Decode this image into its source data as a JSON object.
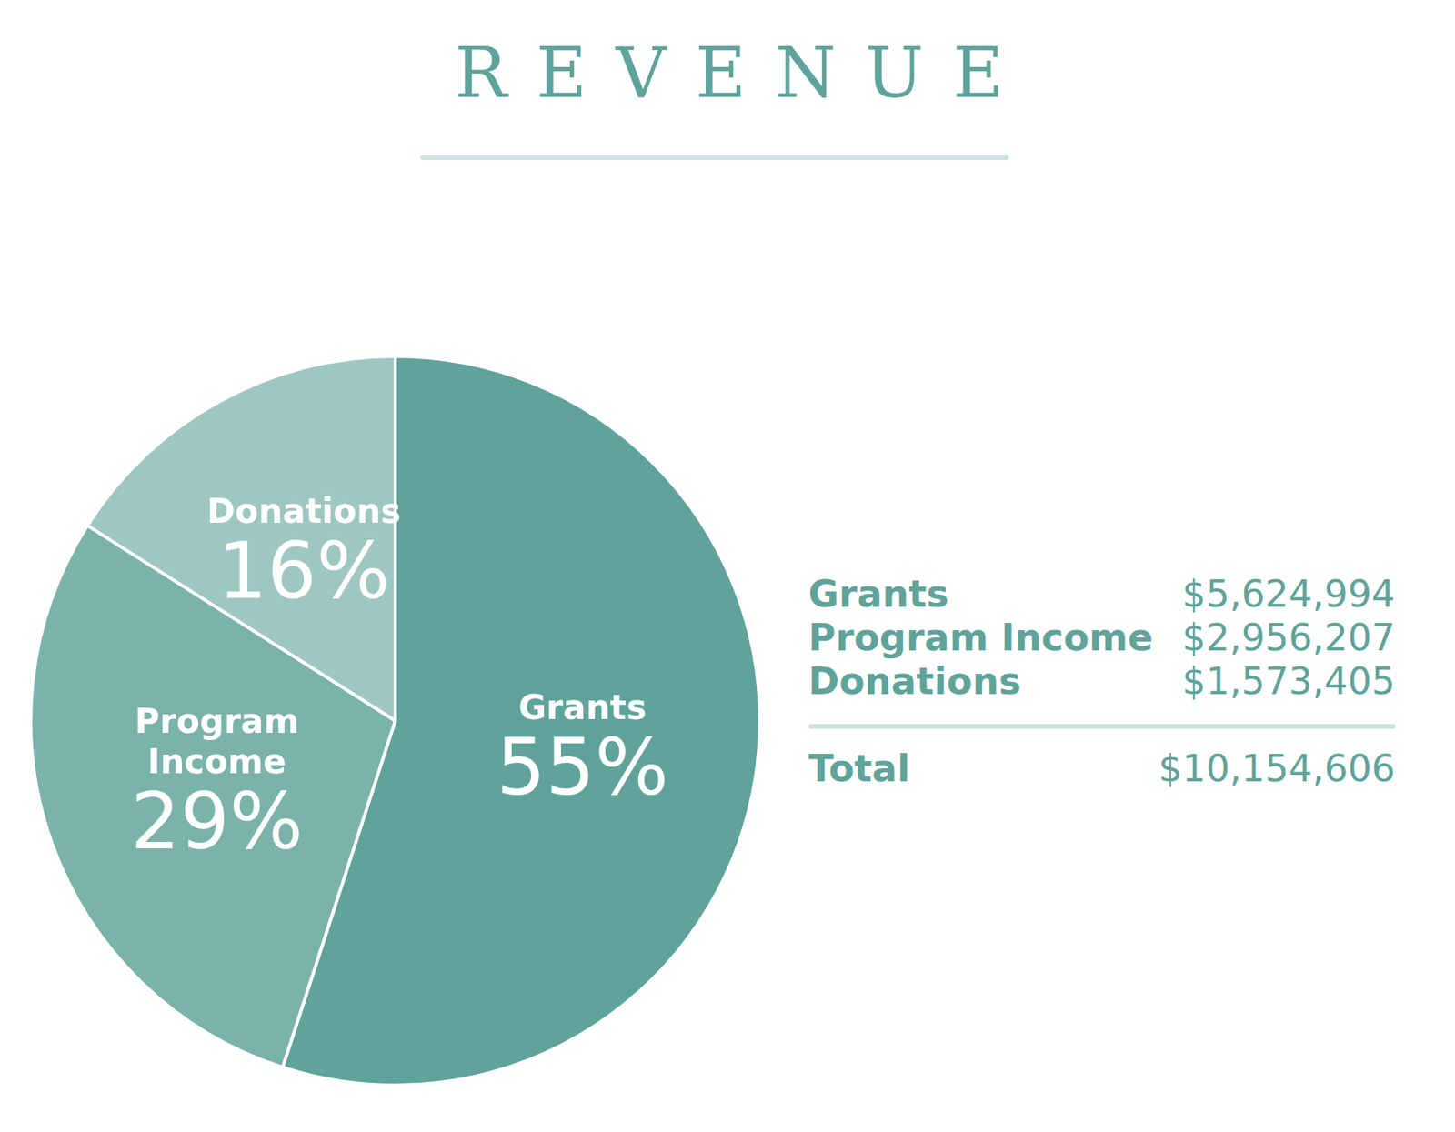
{
  "chart_data": {
    "type": "pie",
    "title": "REVENUE",
    "categories": [
      "Grants",
      "Program Income",
      "Donations"
    ],
    "values": [
      55,
      29,
      16
    ],
    "value_labels": [
      "55%",
      "29%",
      "16%"
    ],
    "colors": [
      "#5fa39b",
      "#7ab3aa",
      "#9fc7c1"
    ],
    "data_labels": true,
    "legend": "none",
    "table": {
      "rows": [
        [
          "Grants",
          "$5,624,994"
        ],
        [
          "Program Income",
          "$2,956,207"
        ],
        [
          "Donations",
          "$1,573,405"
        ]
      ],
      "total_row": [
        "Total",
        "$10,154,606"
      ]
    }
  }
}
